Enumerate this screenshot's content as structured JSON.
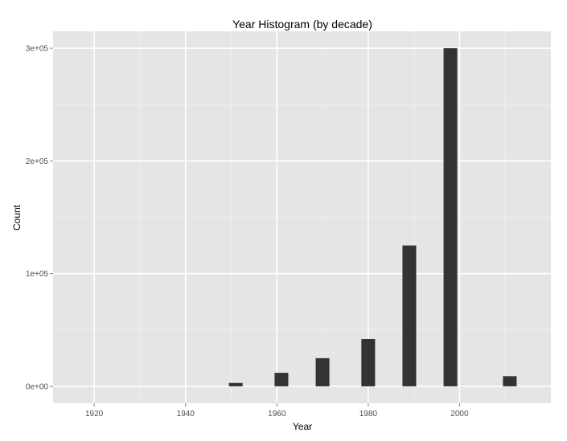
{
  "chart_data": {
    "type": "bar",
    "title": "Year Histogram (by decade)",
    "xlabel": "Year",
    "ylabel": "Count",
    "x_ticks": [
      1920,
      1940,
      1960,
      1980,
      2000
    ],
    "x_tick_labels": [
      "1920",
      "1940",
      "1960",
      "1980",
      "2000"
    ],
    "y_ticks": [
      0,
      100000,
      200000,
      300000
    ],
    "y_tick_labels": [
      "0e+00",
      "1e+05",
      "2e+05",
      "3e+05"
    ],
    "xlim": [
      1911,
      2020
    ],
    "ylim": [
      -15000,
      315000
    ],
    "bin_width": 3,
    "bars": [
      {
        "x": 1951,
        "count": 3000
      },
      {
        "x": 1961,
        "count": 12000
      },
      {
        "x": 1970,
        "count": 25000
      },
      {
        "x": 1980,
        "count": 42000
      },
      {
        "x": 1989,
        "count": 125000
      },
      {
        "x": 1998,
        "count": 300000
      },
      {
        "x": 2011,
        "count": 9000
      }
    ],
    "grid": true,
    "colors": {
      "panel_background": "#e5e5e5",
      "grid_major": "#ffffff",
      "grid_minor": "#f2f2f2",
      "bar_fill": "#333333"
    }
  }
}
